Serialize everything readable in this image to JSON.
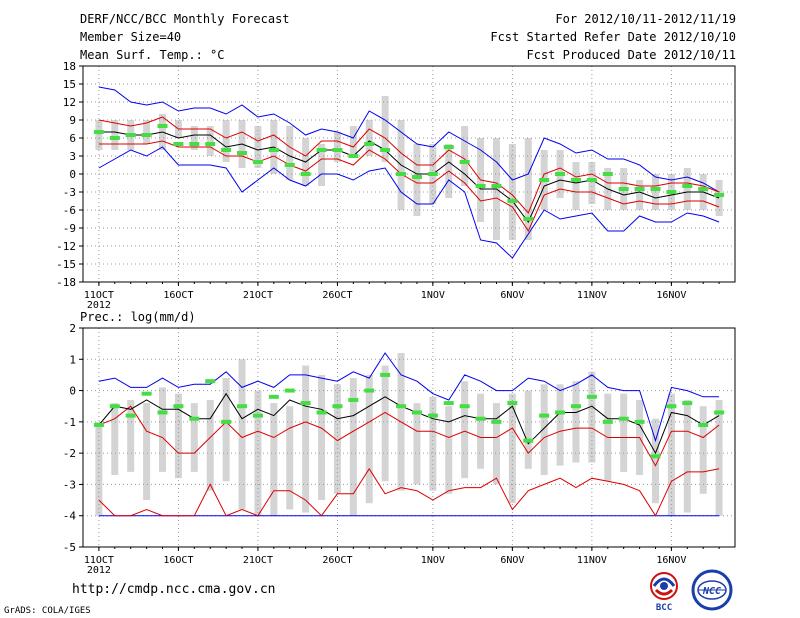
{
  "header": {
    "title": "DERF/NCC/BCC Monthly Forecast",
    "member_size": "Member Size=40",
    "variable": "Mean Surf. Temp.: °C",
    "period": "For 2012/10/11-2012/11/19",
    "fcst_started": "Fcst Started Refer Date 2012/10/10",
    "fcst_produced": "Fcst Produced Date 2012/10/11"
  },
  "footer": {
    "url": "http://cmdp.ncc.cma.gov.cn",
    "grads": "GrADS: COLA/IGES",
    "logo_bcc": "BCC",
    "logo_ncc": "NCC"
  },
  "colors": {
    "envelope": "#0000ee",
    "spread": "#dd0000",
    "mean": "#000000",
    "marker": "#44dd44",
    "bar": "#d4d4d4",
    "grid": "#9a9a9a"
  },
  "chart_data": [
    {
      "type": "line",
      "title": "Mean Surf. Temp.: °C",
      "x_ticks": [
        "11OCT",
        "16OCT",
        "21OCT",
        "26OCT",
        "1NOV",
        "6NOV",
        "11NOV",
        "16NOV"
      ],
      "x_tick_days": [
        0,
        5,
        10,
        15,
        21,
        26,
        31,
        36
      ],
      "x_year": "2012",
      "xlim": [
        -1,
        40
      ],
      "ylim": [
        -18,
        18
      ],
      "y_ticks": [
        "-18",
        "-15",
        "-12",
        "-9",
        "-6",
        "-3",
        "0",
        "3",
        "6",
        "9",
        "12",
        "15",
        "18"
      ],
      "bar_low": [
        4,
        4,
        4,
        5,
        4,
        6,
        4,
        3,
        2,
        1,
        1,
        0,
        -1,
        -2,
        -2,
        2,
        3,
        3,
        2,
        -6,
        -7,
        -5,
        -4,
        -2,
        -8,
        -11,
        -11,
        -11,
        -6,
        -4,
        -6,
        -5,
        -6,
        -6,
        -6,
        -6,
        -6,
        -6,
        -6,
        -7
      ],
      "bar_high": [
        9,
        9,
        9,
        9,
        10,
        9,
        8,
        8,
        9,
        9,
        8,
        9,
        8,
        6,
        5,
        7,
        8,
        9,
        13,
        9,
        5,
        5,
        5,
        8,
        6,
        6,
        5,
        6,
        4,
        4,
        2,
        2,
        1,
        1,
        -1,
        0,
        0,
        1,
        0,
        -1
      ],
      "max": [
        14.5,
        14,
        12,
        11.5,
        12,
        10.5,
        11,
        11,
        10,
        11.5,
        9.5,
        10,
        8.5,
        6.5,
        7.5,
        7,
        6,
        10.5,
        9,
        7,
        5,
        4.5,
        7,
        5.5,
        4,
        2,
        -1,
        0,
        6,
        5,
        3.5,
        4,
        2.5,
        2.5,
        1.5,
        -0.5,
        -1,
        -0.5,
        -1.5,
        -3
      ],
      "upper": [
        9,
        8.5,
        8,
        8.5,
        9.5,
        7.5,
        7.5,
        7.5,
        6,
        7,
        5.5,
        6.5,
        4.5,
        3,
        5.5,
        5.5,
        4.5,
        7.5,
        6,
        3.5,
        1.5,
        1.5,
        4,
        2.5,
        -1,
        -1.5,
        -3.5,
        -6.5,
        0,
        1,
        -0.5,
        0,
        -1.5,
        -1.5,
        -2,
        -2,
        -1.5,
        -1.5,
        -2,
        -3
      ],
      "mean": [
        7,
        7,
        6.5,
        6.5,
        7,
        6,
        6.5,
        6.5,
        4.5,
        5,
        4,
        4.5,
        3,
        2,
        4,
        4,
        3,
        5.5,
        4,
        1.5,
        0,
        0,
        2,
        0,
        -2.5,
        -2.5,
        -4.5,
        -8,
        -2,
        -1,
        -1.5,
        -1,
        -2.5,
        -3.5,
        -3,
        -4,
        -3.5,
        -3,
        -3,
        -4
      ],
      "lower": [
        5,
        5,
        5,
        5,
        5.5,
        4.5,
        4.5,
        4.5,
        3,
        3,
        2,
        3,
        1.5,
        0.5,
        2.5,
        2.5,
        1.5,
        4,
        2.5,
        0,
        -1.5,
        -1.5,
        0.5,
        -1.5,
        -4.5,
        -4,
        -5.5,
        -9.5,
        -3.5,
        -2.5,
        -3,
        -3,
        -4,
        -5,
        -4.5,
        -5,
        -5,
        -4.5,
        -4.5,
        -5.5
      ],
      "min": [
        1,
        2.5,
        4,
        3,
        4.5,
        1.5,
        1.5,
        1.5,
        1,
        -3,
        -1,
        1,
        -1,
        -2,
        0,
        0,
        -1,
        0.5,
        1,
        -3,
        -5,
        -5,
        -1,
        -3,
        -11,
        -11.5,
        -14,
        -10,
        -6,
        -7.5,
        -7,
        -6.5,
        -9.5,
        -9.5,
        -7,
        -8,
        -8,
        -6.5,
        -7,
        -8
      ],
      "marker": [
        7,
        6,
        6.5,
        6.5,
        8,
        5,
        5,
        5,
        4,
        3.5,
        2,
        4,
        1.5,
        0,
        4,
        4,
        3,
        5,
        4,
        0,
        -0.5,
        0,
        4.5,
        2,
        -2,
        -2,
        -4.5,
        -7.5,
        -1,
        0,
        -1,
        -1,
        0,
        -2.5,
        -2.5,
        -2.5,
        -3,
        -2,
        -2.5,
        -3.5
      ]
    },
    {
      "type": "line",
      "title": "Prec.: log(mm/d)",
      "x_ticks": [
        "11OCT",
        "16OCT",
        "21OCT",
        "26OCT",
        "1NOV",
        "6NOV",
        "11NOV",
        "16NOV"
      ],
      "x_tick_days": [
        0,
        5,
        10,
        15,
        21,
        26,
        31,
        36
      ],
      "x_year": "2012",
      "xlim": [
        -1,
        40
      ],
      "ylim": [
        -5,
        2
      ],
      "y_ticks": [
        "-5",
        "-4",
        "-3",
        "-2",
        "-1",
        "0",
        "1",
        "2"
      ],
      "bar_low": [
        -4,
        -2.7,
        -2.6,
        -3.5,
        -2.6,
        -2.8,
        -2.6,
        -3.2,
        -2.9,
        -3.8,
        -4,
        -4,
        -3.8,
        -3.9,
        -3.5,
        -3.3,
        -4,
        -3.6,
        -2.9,
        -3.2,
        -3,
        -3.2,
        -3.3,
        -2.8,
        -2.5,
        -3,
        -3.6,
        -2.5,
        -2.7,
        -2.4,
        -2.3,
        -2.3,
        -2.9,
        -2.6,
        -2.7,
        -3.6,
        -4,
        -3.9,
        -3.3,
        -4
      ],
      "bar_high": [
        -1,
        -0.4,
        -0.3,
        -0.4,
        0.1,
        -0.1,
        -0.4,
        -0.3,
        0.4,
        1,
        0,
        -0.4,
        -0.5,
        0.8,
        0.5,
        0.2,
        0.4,
        0.5,
        0.8,
        1.2,
        -0.4,
        -0.2,
        -0.5,
        0.3,
        -0.1,
        -0.4,
        -0.1,
        0,
        0.2,
        0.2,
        0.3,
        0.6,
        -0.1,
        -0.1,
        -0.3,
        -0.9,
        -0.1,
        -0.3,
        -0.5,
        -0.3
      ],
      "max": [
        0.3,
        0.4,
        0.1,
        0.1,
        0.4,
        0.1,
        0.2,
        0.2,
        0.6,
        0.1,
        0.3,
        0.1,
        0.5,
        0.5,
        0.4,
        0.3,
        0.6,
        0.4,
        1.2,
        0.5,
        0.3,
        -0.1,
        -0.3,
        0.5,
        0.3,
        0,
        0,
        0.4,
        0.3,
        0,
        0.2,
        0.5,
        0.1,
        0,
        0,
        -1.6,
        0.1,
        0,
        -0.2,
        -0.2
      ],
      "mean": [
        -1.1,
        -0.5,
        -0.6,
        -0.3,
        -0.6,
        -0.6,
        -0.9,
        -0.9,
        -0.1,
        -0.9,
        -0.6,
        -0.8,
        -0.3,
        -0.5,
        -0.6,
        -0.9,
        -0.8,
        -0.5,
        -0.2,
        -0.5,
        -0.7,
        -0.9,
        -1.0,
        -0.8,
        -0.9,
        -0.9,
        -0.5,
        -1.7,
        -1.2,
        -0.7,
        -0.7,
        -0.5,
        -0.9,
        -0.9,
        -1.1,
        -2.0,
        -0.7,
        -0.8,
        -1.1,
        -0.8
      ],
      "lower": [
        -1.1,
        -0.9,
        -0.5,
        -1.3,
        -1.5,
        -2.0,
        -2.0,
        -1.5,
        -1.0,
        -1.5,
        -1.3,
        -1.5,
        -1.2,
        -1.0,
        -1.2,
        -1.6,
        -1.3,
        -1.0,
        -0.7,
        -1.0,
        -1.3,
        -1.3,
        -1.5,
        -1.3,
        -1.5,
        -1.5,
        -1.2,
        -2.0,
        -1.5,
        -1.3,
        -1.2,
        -1.2,
        -1.5,
        -1.5,
        -1.5,
        -2.4,
        -1.3,
        -1.3,
        -1.5,
        -1.1
      ],
      "min": [
        -3.5,
        -4.0,
        -4.0,
        -3.8,
        -4.0,
        -4.0,
        -4.0,
        -3.0,
        -4.0,
        -3.8,
        -4.0,
        -3.2,
        -3.2,
        -3.5,
        -4.0,
        -3.3,
        -3.3,
        -2.5,
        -3.3,
        -3.1,
        -3.2,
        -3.5,
        -3.2,
        -3.1,
        -3.1,
        -2.8,
        -3.8,
        -3.2,
        -3.0,
        -2.8,
        -3.1,
        -2.8,
        -2.9,
        -3.0,
        -3.2,
        -4.0,
        -2.9,
        -2.6,
        -2.6,
        -2.5
      ],
      "floor": -4,
      "marker": [
        -1.1,
        -0.5,
        -0.8,
        -0.1,
        -0.7,
        -0.5,
        -0.9,
        0.3,
        -1.0,
        -0.5,
        -0.8,
        -0.2,
        0,
        -0.4,
        -0.7,
        -0.5,
        -0.3,
        0,
        0.5,
        -0.5,
        -0.7,
        -0.8,
        -0.4,
        -0.5,
        -0.9,
        -1.0,
        -0.4,
        -1.6,
        -0.8,
        -0.7,
        -0.5,
        -0.2,
        -1.0,
        -0.9,
        -1.0,
        -2.1,
        -0.5,
        -0.4,
        -1.1,
        -0.7
      ]
    }
  ],
  "prec_label": "Prec.: log(mm/d)"
}
